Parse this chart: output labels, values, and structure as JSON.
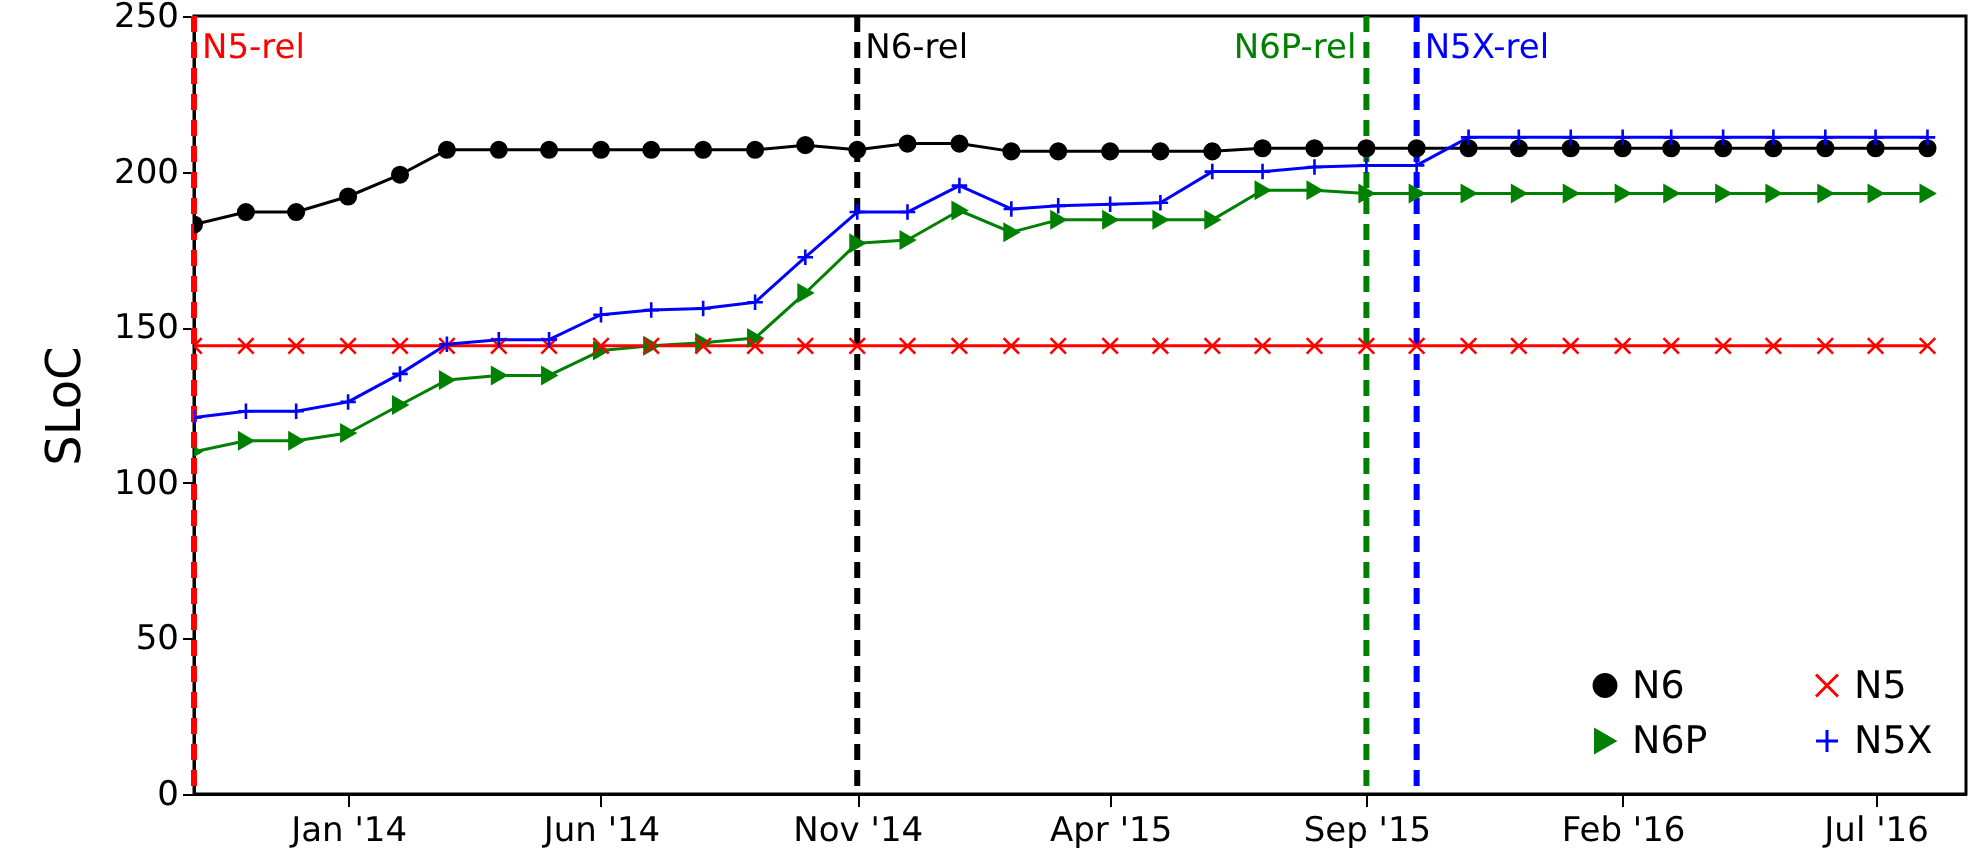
{
  "chart_data": {
    "type": "line",
    "ylabel": "SLoC",
    "x": [
      "2013-10-01",
      "2013-11-01",
      "2013-12-01",
      "2014-01-01",
      "2014-02-01",
      "2014-03-01",
      "2014-04-01",
      "2014-05-01",
      "2014-06-01",
      "2014-07-01",
      "2014-08-01",
      "2014-09-01",
      "2014-10-01",
      "2014-11-01",
      "2014-12-01",
      "2015-01-01",
      "2015-02-01",
      "2015-03-01",
      "2015-04-01",
      "2015-05-01",
      "2015-06-01",
      "2015-07-01",
      "2015-08-01",
      "2015-09-01",
      "2015-10-01",
      "2015-11-01",
      "2015-12-01",
      "2016-01-01",
      "2016-02-01",
      "2016-03-01",
      "2016-04-01",
      "2016-05-01",
      "2016-06-01",
      "2016-07-01",
      "2016-08-01"
    ],
    "series": [
      {
        "name": "N6",
        "color": "#000000",
        "marker": "circle",
        "values": [
          183,
          187,
          187,
          192,
          199,
          207,
          207,
          207,
          207,
          207,
          207,
          207,
          208.5,
          207,
          209,
          209,
          206.5,
          206.5,
          206.5,
          206.5,
          206.5,
          207.5,
          207.5,
          207.5,
          207.5,
          207.5,
          207.5,
          207.5,
          207.5,
          207.5,
          207.5,
          207.5,
          207.5,
          207.5,
          207.5
        ]
      },
      {
        "name": "N6P",
        "color": "#008000",
        "marker": "triangle",
        "values": [
          110,
          113.5,
          113.5,
          116,
          125,
          133,
          134.5,
          134.5,
          142.5,
          144,
          145,
          146.5,
          161,
          177,
          178,
          187.5,
          180.5,
          184.5,
          184.5,
          184.5,
          184.5,
          194,
          194,
          193,
          193,
          193,
          193,
          193,
          193,
          193,
          193,
          193,
          193,
          193,
          193
        ]
      },
      {
        "name": "N5",
        "color": "#ff0000",
        "marker": "x",
        "values": [
          144,
          144,
          144,
          144,
          144,
          144,
          144,
          144,
          144,
          144,
          144,
          144,
          144,
          144,
          144,
          144,
          144,
          144,
          144,
          144,
          144,
          144,
          144,
          144,
          144,
          144,
          144,
          144,
          144,
          144,
          144,
          144,
          144,
          144,
          144
        ]
      },
      {
        "name": "N5X",
        "color": "#0000ff",
        "marker": "cross",
        "values": [
          121,
          123,
          123,
          126,
          135,
          144.5,
          146,
          146,
          154,
          155.5,
          156,
          158,
          172.5,
          187,
          187,
          195.5,
          188,
          189,
          189.5,
          190,
          200,
          200,
          201.5,
          202,
          202,
          211,
          211,
          211,
          211,
          211,
          211,
          211,
          211,
          211,
          211
        ]
      }
    ],
    "xlim": [
      "2013-10-01",
      "2016-08-24"
    ],
    "xticks": [
      {
        "value": "2014-01-01",
        "label": "Jan '14"
      },
      {
        "value": "2014-06-01",
        "label": "Jun '14"
      },
      {
        "value": "2014-11-01",
        "label": "Nov '14"
      },
      {
        "value": "2015-04-01",
        "label": "Apr '15"
      },
      {
        "value": "2015-09-01",
        "label": "Sep '15"
      },
      {
        "value": "2016-02-01",
        "label": "Feb '16"
      },
      {
        "value": "2016-07-01",
        "label": "Jul '16"
      }
    ],
    "ylim": [
      0,
      250
    ],
    "yticks": [
      0,
      50,
      100,
      150,
      200,
      250
    ],
    "ref_lines": [
      {
        "axis": "x",
        "value": "2013-10-01",
        "label": "N5-rel",
        "color": "#ff0000",
        "line_style": "dashed"
      },
      {
        "axis": "x",
        "value": "2014-11-01",
        "label": "N6-rel",
        "color": "#000000",
        "line_style": "dashed"
      },
      {
        "axis": "x",
        "value": "2015-09-01",
        "label": "N6P-rel",
        "color": "#008000",
        "line_style": "dashed"
      },
      {
        "axis": "x",
        "value": "2015-10-01",
        "label": "N5X-rel",
        "color": "#0000ff",
        "line_style": "dashed"
      }
    ],
    "grid": false,
    "legend": "bottom right",
    "line_style": "solid"
  }
}
